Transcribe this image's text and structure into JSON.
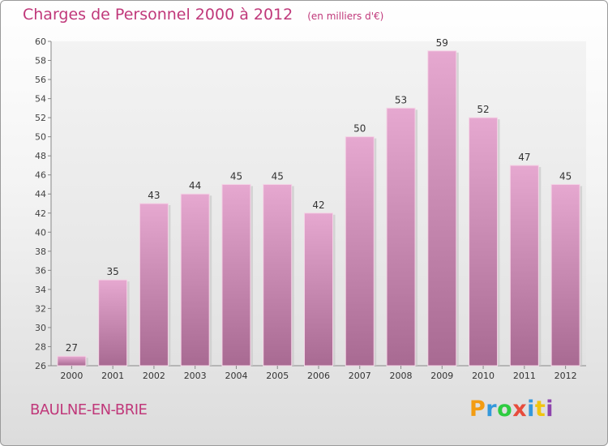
{
  "header": {
    "title": "Charges de Personnel 2000 à 2012",
    "unit": "(en milliers d'€)"
  },
  "footer": {
    "city": "BAULNE-EN-BRIE",
    "brand": "Proxiti",
    "brand_colors": [
      "#f39c12",
      "#3498db",
      "#2ecc40",
      "#e74c3c",
      "#3498db",
      "#f1c40f",
      "#8e44ad"
    ]
  },
  "chart_data": {
    "type": "bar",
    "categories": [
      "2000",
      "2001",
      "2002",
      "2003",
      "2004",
      "2005",
      "2006",
      "2007",
      "2008",
      "2009",
      "2010",
      "2011",
      "2012"
    ],
    "values": [
      27,
      35,
      43,
      44,
      45,
      45,
      42,
      50,
      53,
      59,
      52,
      47,
      45
    ],
    "ylim": [
      26,
      60
    ],
    "yticks": [
      26,
      28,
      30,
      32,
      34,
      36,
      38,
      40,
      42,
      44,
      46,
      48,
      50,
      52,
      54,
      56,
      58,
      60
    ],
    "grid": false,
    "legend": false,
    "bar_color": "#d98ab8"
  }
}
